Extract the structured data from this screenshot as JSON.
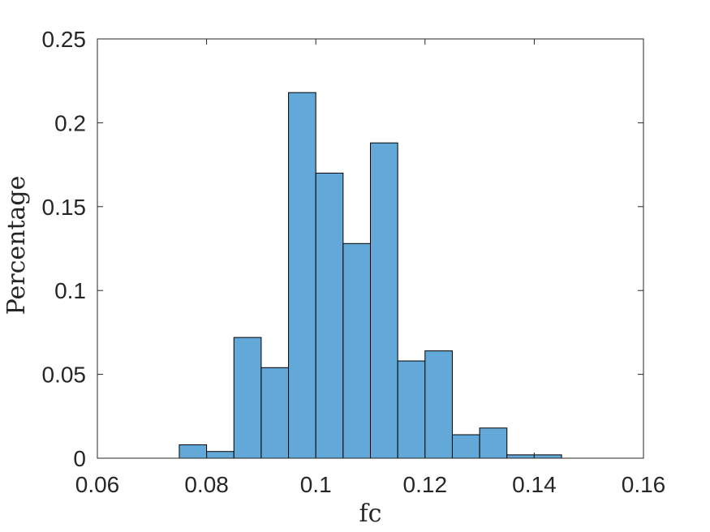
{
  "chart_data": {
    "type": "bar",
    "xlabel": "fc",
    "ylabel": "Percentage",
    "xlim": [
      0.06,
      0.16
    ],
    "ylim": [
      0,
      0.25
    ],
    "xticks": [
      "0.06",
      "0.08",
      "0.1",
      "0.12",
      "0.14",
      "0.16"
    ],
    "yticks": [
      "0",
      "0.05",
      "0.1",
      "0.15",
      "0.2",
      "0.25"
    ],
    "bin_width": 0.005,
    "bins": [
      {
        "x0": 0.075,
        "value": 0.008
      },
      {
        "x0": 0.08,
        "value": 0.004
      },
      {
        "x0": 0.085,
        "value": 0.072
      },
      {
        "x0": 0.09,
        "value": 0.054
      },
      {
        "x0": 0.095,
        "value": 0.218
      },
      {
        "x0": 0.1,
        "value": 0.17
      },
      {
        "x0": 0.105,
        "value": 0.128
      },
      {
        "x0": 0.11,
        "value": 0.188
      },
      {
        "x0": 0.115,
        "value": 0.058
      },
      {
        "x0": 0.12,
        "value": 0.064
      },
      {
        "x0": 0.125,
        "value": 0.014
      },
      {
        "x0": 0.13,
        "value": 0.018
      },
      {
        "x0": 0.135,
        "value": 0.002
      },
      {
        "x0": 0.14,
        "value": 0.002
      }
    ],
    "bar_color": "#62a8d8",
    "edge_color": "#000000",
    "grid": false,
    "box": true
  }
}
